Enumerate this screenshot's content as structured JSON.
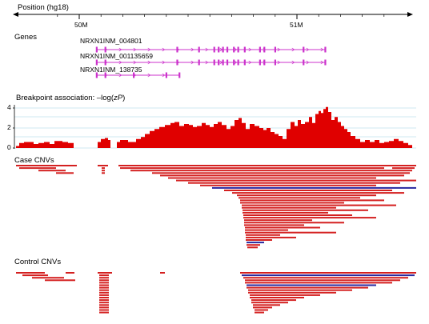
{
  "header": {
    "position_label": "Position (hg18)",
    "ticks": [
      {
        "label": "50M",
        "value": 50
      },
      {
        "label": "51M",
        "value": 51
      }
    ]
  },
  "genes": {
    "title": "Genes",
    "transcripts": [
      {
        "name": "NRXN1INM_004801",
        "start": 50.08,
        "end": 51.13
      },
      {
        "name": "NRXN1INM_001135659",
        "start": 50.08,
        "end": 51.13
      },
      {
        "name": "NRXN1INM_138735",
        "start": 50.08,
        "end": 50.46
      }
    ]
  },
  "association": {
    "title_prefix": "Breakpoint association: –log(",
    "title_italic": "zP",
    "title_suffix": ")",
    "y_ticks": [
      "4",
      "2",
      "0"
    ]
  },
  "case_cnvs": {
    "title": "Case CNVs"
  },
  "control_cnvs": {
    "title": "Control CNVs"
  },
  "colors": {
    "association_fill": "#e00000",
    "deletion": "#d42020",
    "duplication": "#2a2aa0",
    "gene": "#cc33cc",
    "grid": "#9fd4e6"
  }
}
